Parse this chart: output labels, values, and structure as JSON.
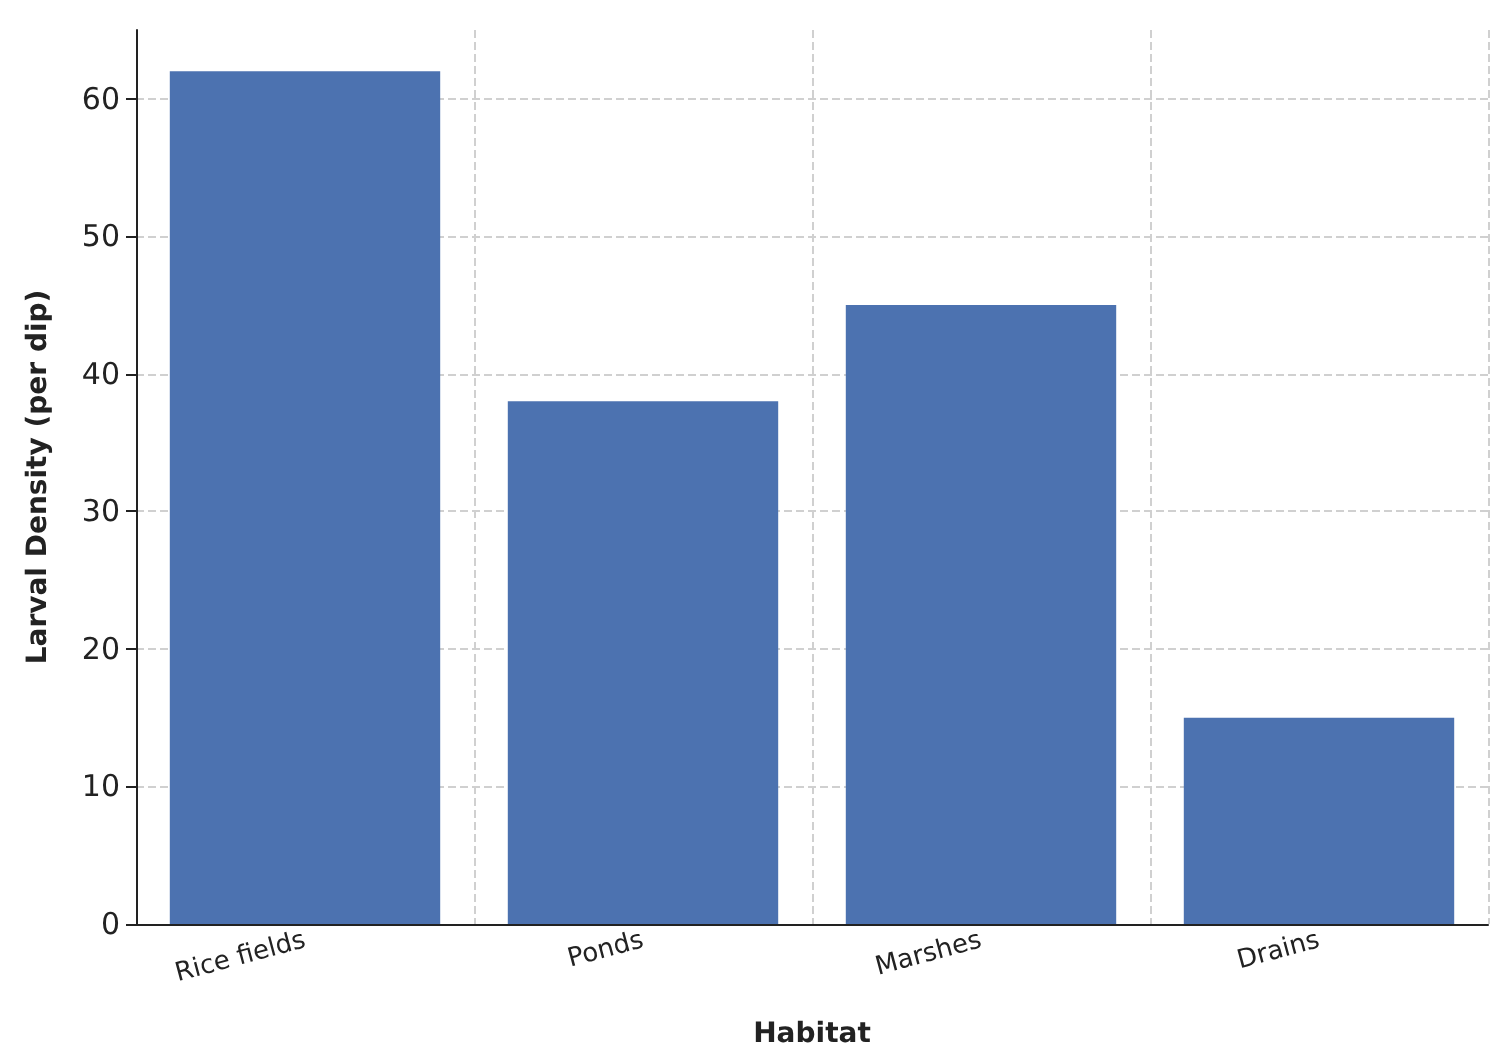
{
  "chart_data": {
    "type": "bar",
    "xlabel": "Habitat",
    "ylabel": "Larval Density (per dip)",
    "categories": [
      "Rice fields",
      "Ponds",
      "Marshes",
      "Drains"
    ],
    "values": [
      62,
      38,
      45,
      15
    ],
    "color": "#4c72b0",
    "ylim": [
      0,
      65
    ],
    "yticks": [
      0,
      10,
      20,
      30,
      40,
      50,
      60
    ],
    "grid": true
  }
}
